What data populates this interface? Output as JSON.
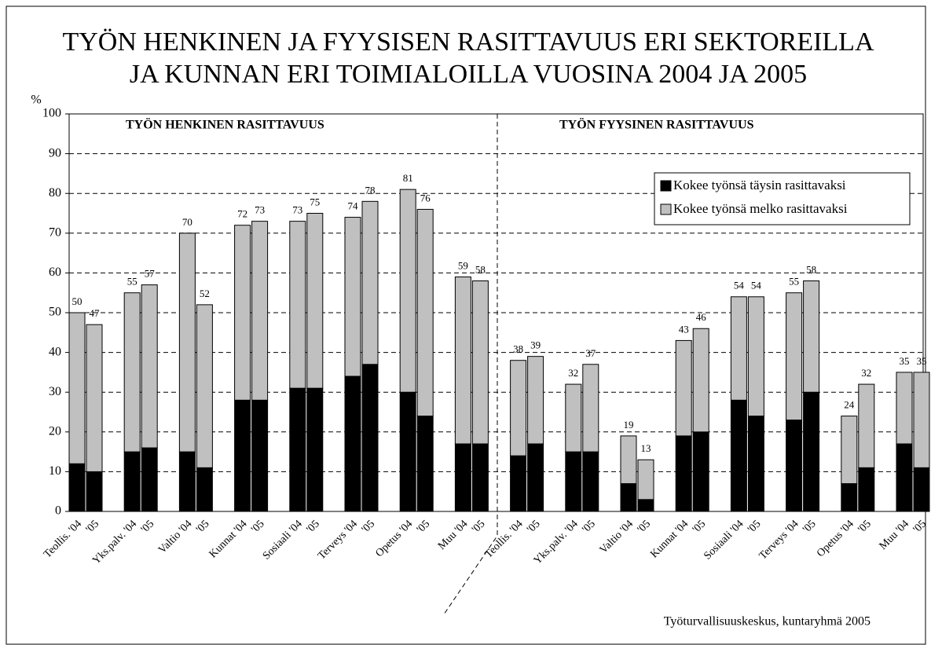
{
  "chart_data": {
    "type": "stacked_bar",
    "title": [
      "TYÖN HENKINEN JA  FYYSISEN RASITTAVUUS ERI SEKTOREILLA",
      "JA KUNNAN ERI TOIMIALOILLA VUOSINA  2004 JA 2005"
    ],
    "y_label": "%",
    "annotations": [
      "TYÖN HENKINEN RASITTAVUUS",
      "TYÖN FYYSINEN RASITTAVUUS"
    ],
    "source": "Työturvallisuuskeskus, kuntaryhmä 2005",
    "categories": [
      "Teollis. '04",
      "'05",
      "Yks.palv. '04",
      "'05",
      "Valtio '04",
      "'05",
      "Kunnat '04",
      "'05",
      "Sosiaali '04",
      "'05",
      "Terveys '04",
      "'05",
      "Opetus '04",
      "'05",
      "Muu '04",
      "'05",
      "Teollis. '04",
      "'05",
      "Yks.palv. '04",
      "'05",
      "Valtio '04",
      "'05",
      "Kunnat '04",
      "'05",
      "Sosiaali '04",
      "'05",
      "Terveys '04",
      "'05",
      "Opetus '04",
      "'05",
      "Muu '04",
      "'05"
    ],
    "series": [
      {
        "name": "Kokee työnsä täysin rasittavaksi",
        "color": "#000000",
        "values": [
          12,
          10,
          15,
          16,
          15,
          11,
          28,
          28,
          31,
          31,
          34,
          37,
          30,
          24,
          17,
          17,
          14,
          17,
          15,
          15,
          7,
          3,
          19,
          20,
          28,
          24,
          23,
          30,
          7,
          11,
          17,
          11
        ]
      },
      {
        "name": "Kokee työnsä melko rasittavaksi",
        "color": "#c0c0c0",
        "values": [
          38,
          37,
          40,
          41,
          55,
          41,
          44,
          45,
          42,
          44,
          40,
          41,
          51,
          52,
          42,
          41,
          24,
          22,
          17,
          22,
          12,
          10,
          24,
          26,
          26,
          30,
          32,
          28,
          17,
          21,
          18,
          24
        ]
      }
    ],
    "totals": [
      50,
      47,
      55,
      57,
      70,
      52,
      72,
      73,
      73,
      75,
      74,
      78,
      81,
      76,
      59,
      58,
      38,
      39,
      32,
      37,
      19,
      13,
      43,
      46,
      54,
      54,
      55,
      58,
      24,
      32,
      35,
      35
    ],
    "ylim": [
      0,
      100
    ],
    "yticks": [
      0,
      10,
      20,
      30,
      40,
      50,
      60,
      70,
      80,
      90,
      100
    ],
    "grid": true,
    "legend": "upper right"
  }
}
